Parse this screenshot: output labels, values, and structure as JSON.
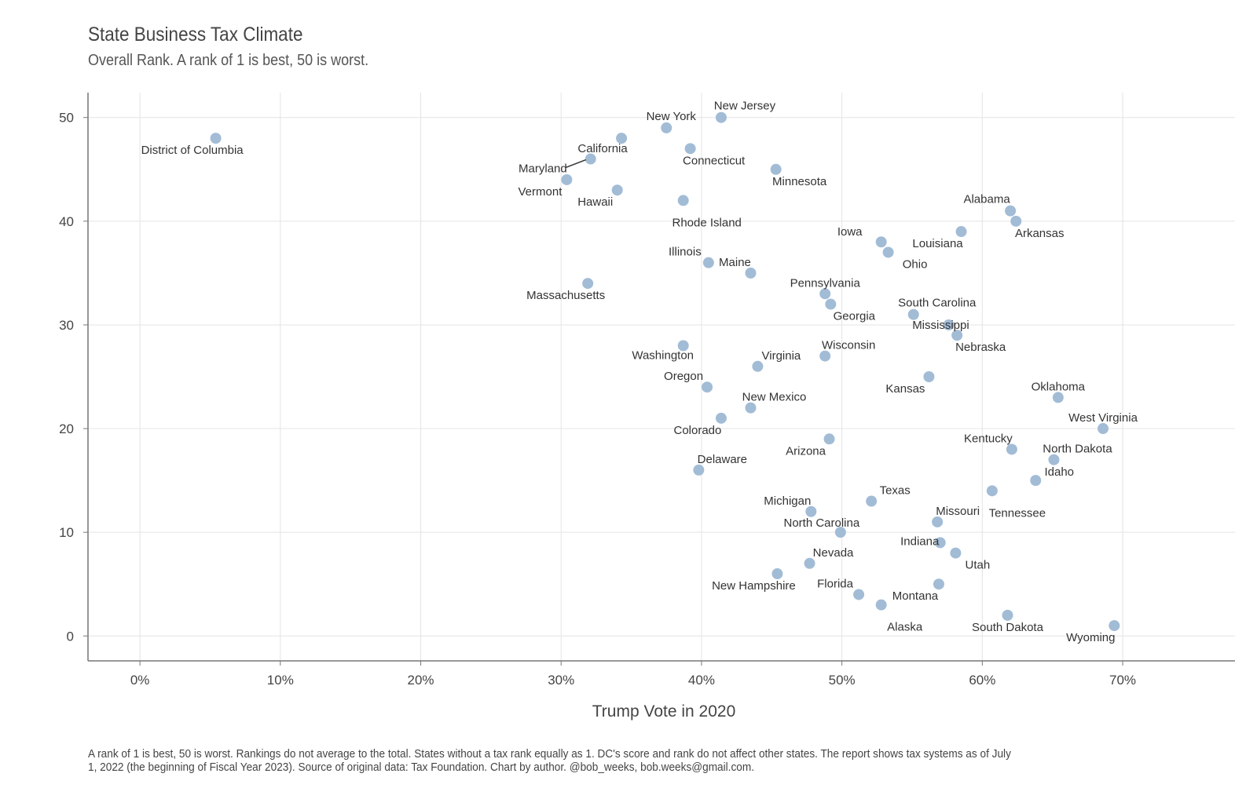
{
  "chart_data": {
    "type": "scatter",
    "title": "State Business Tax Climate",
    "subtitle": "Overall Rank. A rank of 1 is best, 50 is worst.",
    "xlabel": "Trump Vote in 2020",
    "ylabel": "",
    "xlim": [
      -0.037,
      0.78
    ],
    "ylim": [
      -2.4,
      52.4
    ],
    "x_ticks": [
      0,
      0.1,
      0.2,
      0.3,
      0.4,
      0.5,
      0.6,
      0.7
    ],
    "x_tick_labels": [
      "0%",
      "10%",
      "20%",
      "30%",
      "40%",
      "50%",
      "60%",
      "70%"
    ],
    "y_ticks": [
      0,
      10,
      20,
      30,
      40,
      50
    ],
    "y_tick_labels": [
      "0",
      "10",
      "20",
      "30",
      "40",
      "50"
    ],
    "grid": true,
    "point_color": "#a2bcd6",
    "caption": "A rank of 1 is best, 50 is worst. Rankings do not average to the total. States without a tax rank equally as 1. DC's score and rank do not affect other states. The report shows tax systems as of July 1, 2022 (the beginning of Fiscal Year 2023). Source of original data: Tax Foundation. Chart by author. @bob_weeks, bob.weeks@gmail.com.",
    "points": [
      {
        "name": "District of Columbia",
        "x": 0.054,
        "y": 48
      },
      {
        "name": "New York",
        "x": 0.375,
        "y": 49
      },
      {
        "name": "New Jersey",
        "x": 0.414,
        "y": 50
      },
      {
        "name": "California",
        "x": 0.343,
        "y": 48
      },
      {
        "name": "Connecticut",
        "x": 0.392,
        "y": 47
      },
      {
        "name": "Maryland",
        "x": 0.321,
        "y": 46
      },
      {
        "name": "Minnesota",
        "x": 0.453,
        "y": 45
      },
      {
        "name": "Vermont",
        "x": 0.304,
        "y": 44
      },
      {
        "name": "Hawaii",
        "x": 0.34,
        "y": 43
      },
      {
        "name": "Rhode Island",
        "x": 0.387,
        "y": 42
      },
      {
        "name": "Alabama",
        "x": 0.62,
        "y": 41
      },
      {
        "name": "Arkansas",
        "x": 0.624,
        "y": 40
      },
      {
        "name": "Louisiana",
        "x": 0.585,
        "y": 39
      },
      {
        "name": "Iowa",
        "x": 0.528,
        "y": 38
      },
      {
        "name": "Ohio",
        "x": 0.533,
        "y": 37
      },
      {
        "name": "Illinois",
        "x": 0.405,
        "y": 36
      },
      {
        "name": "Maine",
        "x": 0.435,
        "y": 35
      },
      {
        "name": "Massachusetts",
        "x": 0.319,
        "y": 34
      },
      {
        "name": "Pennsylvania",
        "x": 0.488,
        "y": 33
      },
      {
        "name": "Georgia",
        "x": 0.492,
        "y": 32
      },
      {
        "name": "South Carolina",
        "x": 0.551,
        "y": 31
      },
      {
        "name": "Mississippi",
        "x": 0.576,
        "y": 30
      },
      {
        "name": "Nebraska",
        "x": 0.582,
        "y": 29
      },
      {
        "name": "Washington",
        "x": 0.387,
        "y": 28
      },
      {
        "name": "Wisconsin",
        "x": 0.488,
        "y": 27
      },
      {
        "name": "Virginia",
        "x": 0.44,
        "y": 26
      },
      {
        "name": "Kansas",
        "x": 0.562,
        "y": 25
      },
      {
        "name": "Oregon",
        "x": 0.404,
        "y": 24
      },
      {
        "name": "Oklahoma",
        "x": 0.654,
        "y": 23
      },
      {
        "name": "New Mexico",
        "x": 0.435,
        "y": 22
      },
      {
        "name": "Colorado",
        "x": 0.414,
        "y": 21
      },
      {
        "name": "West Virginia",
        "x": 0.686,
        "y": 20
      },
      {
        "name": "Arizona",
        "x": 0.491,
        "y": 19
      },
      {
        "name": "Kentucky",
        "x": 0.621,
        "y": 18
      },
      {
        "name": "North Dakota",
        "x": 0.651,
        "y": 17
      },
      {
        "name": "Delaware",
        "x": 0.398,
        "y": 16
      },
      {
        "name": "Idaho",
        "x": 0.638,
        "y": 15
      },
      {
        "name": "Tennessee",
        "x": 0.607,
        "y": 14
      },
      {
        "name": "Texas",
        "x": 0.521,
        "y": 13
      },
      {
        "name": "Michigan",
        "x": 0.478,
        "y": 12
      },
      {
        "name": "Missouri",
        "x": 0.568,
        "y": 11
      },
      {
        "name": "North Carolina",
        "x": 0.499,
        "y": 10
      },
      {
        "name": "Indiana",
        "x": 0.57,
        "y": 9
      },
      {
        "name": "Utah",
        "x": 0.581,
        "y": 8
      },
      {
        "name": "Nevada",
        "x": 0.477,
        "y": 7
      },
      {
        "name": "New Hampshire",
        "x": 0.454,
        "y": 6
      },
      {
        "name": "Montana",
        "x": 0.569,
        "y": 5
      },
      {
        "name": "Florida",
        "x": 0.512,
        "y": 4
      },
      {
        "name": "Alaska",
        "x": 0.528,
        "y": 3
      },
      {
        "name": "South Dakota",
        "x": 0.618,
        "y": 2
      },
      {
        "name": "Wyoming",
        "x": 0.694,
        "y": 1
      }
    ]
  }
}
